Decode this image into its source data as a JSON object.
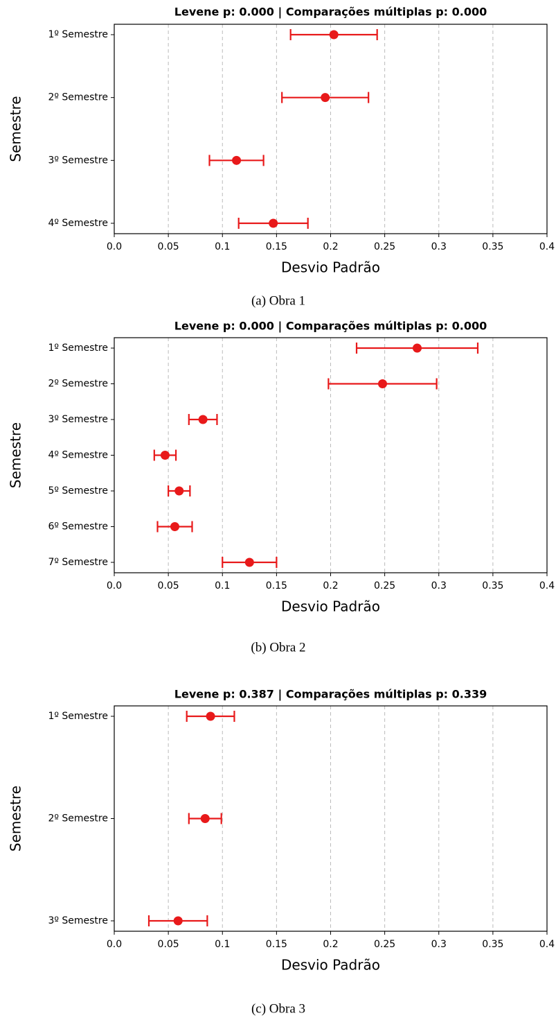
{
  "chart_data": [
    {
      "type": "errorbar",
      "title": "Levene p: 0.000 | Comparações múltiplas p: 0.000",
      "caption": "(a) Obra 1",
      "xlabel": "Desvio Padrão",
      "ylabel": "Semestre",
      "color": "#e8191a",
      "grid": true,
      "categories": [
        "1º Semestre",
        "2º Semestre",
        "3º Semestre",
        "4º Semestre"
      ],
      "values": [
        0.203,
        0.195,
        0.113,
        0.147
      ],
      "errors": [
        0.04,
        0.04,
        0.025,
        0.032
      ],
      "xlim": [
        0,
        0.4
      ],
      "xticks": [
        {
          "value": 0,
          "label": "0.0"
        },
        0.05,
        0.1,
        0.15,
        0.2,
        0.25,
        0.3,
        0.35,
        0.4
      ]
    },
    {
      "type": "errorbar",
      "title": "Levene p: 0.000 | Comparações múltiplas p: 0.000",
      "caption": "(b) Obra 2",
      "xlabel": "Desvio Padrão",
      "ylabel": "Semestre",
      "color": "#e8191a",
      "grid": true,
      "categories": [
        "1º Semestre",
        "2º Semestre",
        "3º Semestre",
        "4º Semestre",
        "5º Semestre",
        "6º Semestre",
        "7º Semestre"
      ],
      "values": [
        0.28,
        0.248,
        0.082,
        0.047,
        0.06,
        0.056,
        0.125
      ],
      "errors": [
        0.056,
        0.05,
        0.013,
        0.01,
        0.01,
        0.016,
        0.025
      ],
      "xlim": [
        0,
        0.4
      ],
      "xticks": [
        {
          "value": 0,
          "label": "0.0"
        },
        0.05,
        0.1,
        0.15,
        0.2,
        0.25,
        0.3,
        0.35,
        0.4
      ]
    },
    {
      "type": "errorbar",
      "title": "Levene p: 0.387 | Comparações múltiplas p: 0.339",
      "caption": "(c) Obra 3",
      "xlabel": "Desvio Padrão",
      "ylabel": "Semestre",
      "color": "#e8191a",
      "grid": true,
      "categories": [
        "1º Semestre",
        "2º Semestre",
        "3º Semestre"
      ],
      "values": [
        0.089,
        0.084,
        0.059
      ],
      "errors": [
        0.022,
        0.015,
        0.027
      ],
      "xlim": [
        0,
        0.4
      ],
      "xticks": [
        {
          "value": 0,
          "label": "0.0"
        },
        0.05,
        0.1,
        0.15,
        0.2,
        0.25,
        0.3,
        0.35,
        0.4
      ]
    }
  ]
}
